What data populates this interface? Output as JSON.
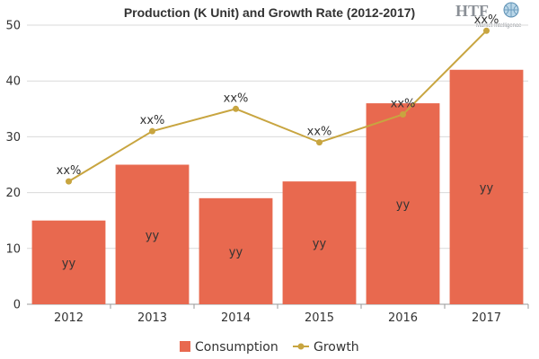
{
  "chart_data": {
    "type": "bar",
    "title": "Production (K Unit) and Growth Rate (2012-2017)",
    "categories": [
      "2012",
      "2013",
      "2014",
      "2015",
      "2016",
      "2017"
    ],
    "ylim": [
      0,
      50
    ],
    "yticks": [
      0,
      10,
      20,
      30,
      40,
      50
    ],
    "grid": true,
    "legend_position": "bottom-center",
    "series": [
      {
        "name": "Consumption",
        "type": "bar",
        "color": "#e8694f",
        "values": [
          15,
          25,
          19,
          22,
          36,
          42
        ],
        "labels": [
          "yy",
          "yy",
          "yy",
          "yy",
          "yy",
          "yy"
        ]
      },
      {
        "name": "Growth",
        "type": "line",
        "color": "#c8a540",
        "values": [
          22,
          31,
          35,
          29,
          34,
          49
        ],
        "labels": [
          "xx%",
          "xx%",
          "xx%",
          "xx%",
          "xx%",
          "xx%"
        ]
      }
    ]
  },
  "logo": {
    "mark": "HTF",
    "tagline": "Market Intelligence",
    "icon": "globe-icon"
  }
}
